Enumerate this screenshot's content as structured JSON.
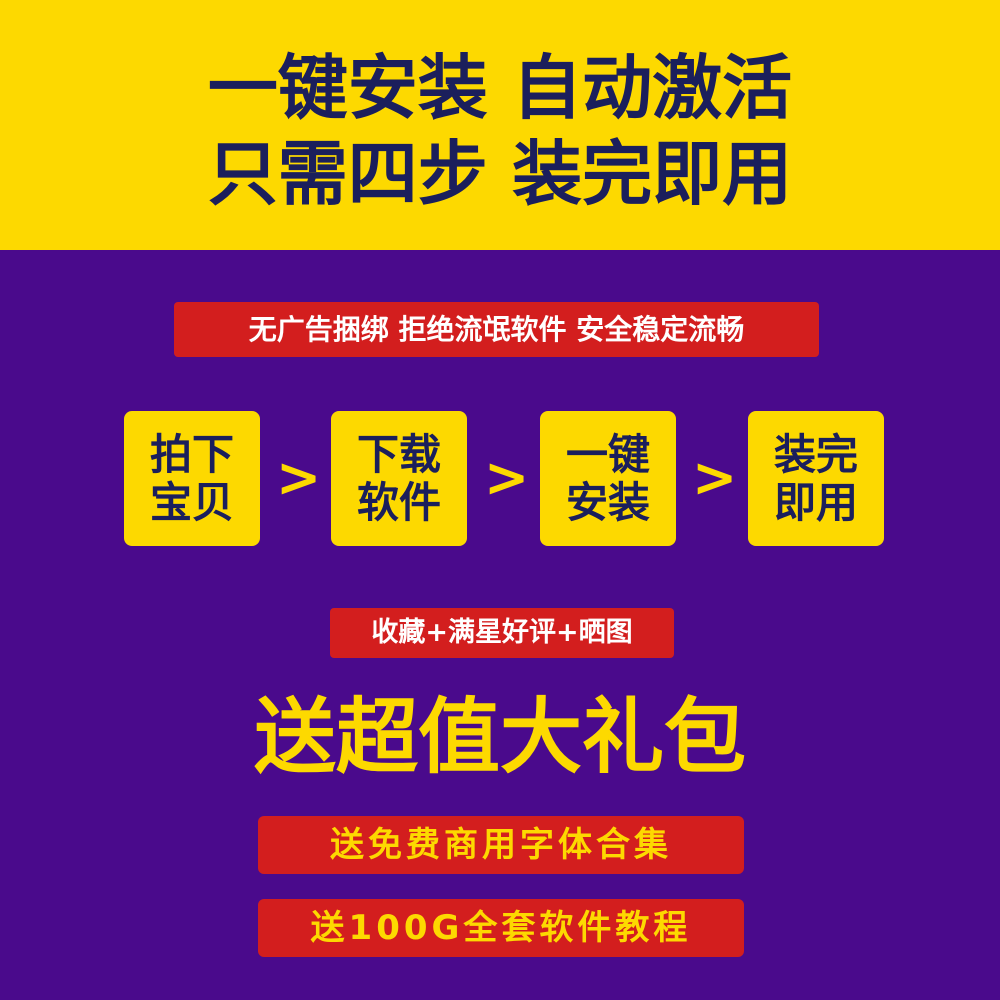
{
  "headline": {
    "line1": "一键安装 自动激活",
    "line2": "只需四步 装完即用"
  },
  "features_text": "无广告捆绑 拒绝流氓软件 安全稳定流畅",
  "steps": [
    {
      "line1": "拍下",
      "line2": "宝贝"
    },
    {
      "line1": "下载",
      "line2": "软件"
    },
    {
      "line1": "一键",
      "line2": "安装"
    },
    {
      "line1": "装完",
      "line2": "即用"
    }
  ],
  "arrow_glyph": ">",
  "review_text": "收藏+满星好评+晒图",
  "gift_title": "送超值大礼包",
  "gifts": [
    "送免费商用字体合集",
    "送100G全套软件教程"
  ],
  "colors": {
    "yellow": "#fdd900",
    "purple": "#4a0a8c",
    "red": "#d31e1e",
    "navy": "#1b1f5c"
  }
}
